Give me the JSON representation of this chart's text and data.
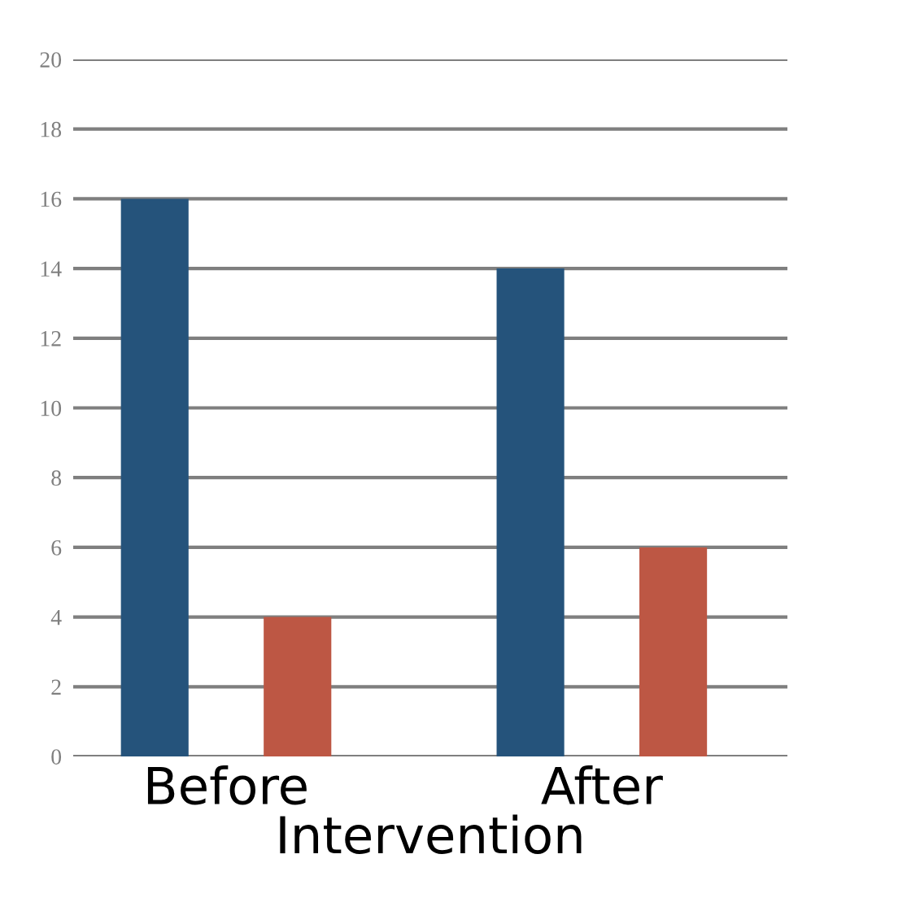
{
  "chart_data": {
    "type": "bar",
    "xlabel": "Intervention",
    "categories": [
      "Before",
      "After"
    ],
    "series": [
      {
        "color": "#25537b",
        "values": [
          16,
          14
        ]
      },
      {
        "color": "#bd5744",
        "values": [
          4,
          6
        ]
      }
    ],
    "ylim": [
      0,
      20
    ],
    "yticks": [
      0,
      2,
      4,
      6,
      8,
      10,
      12,
      14,
      16,
      18,
      20
    ],
    "grid": "y"
  }
}
